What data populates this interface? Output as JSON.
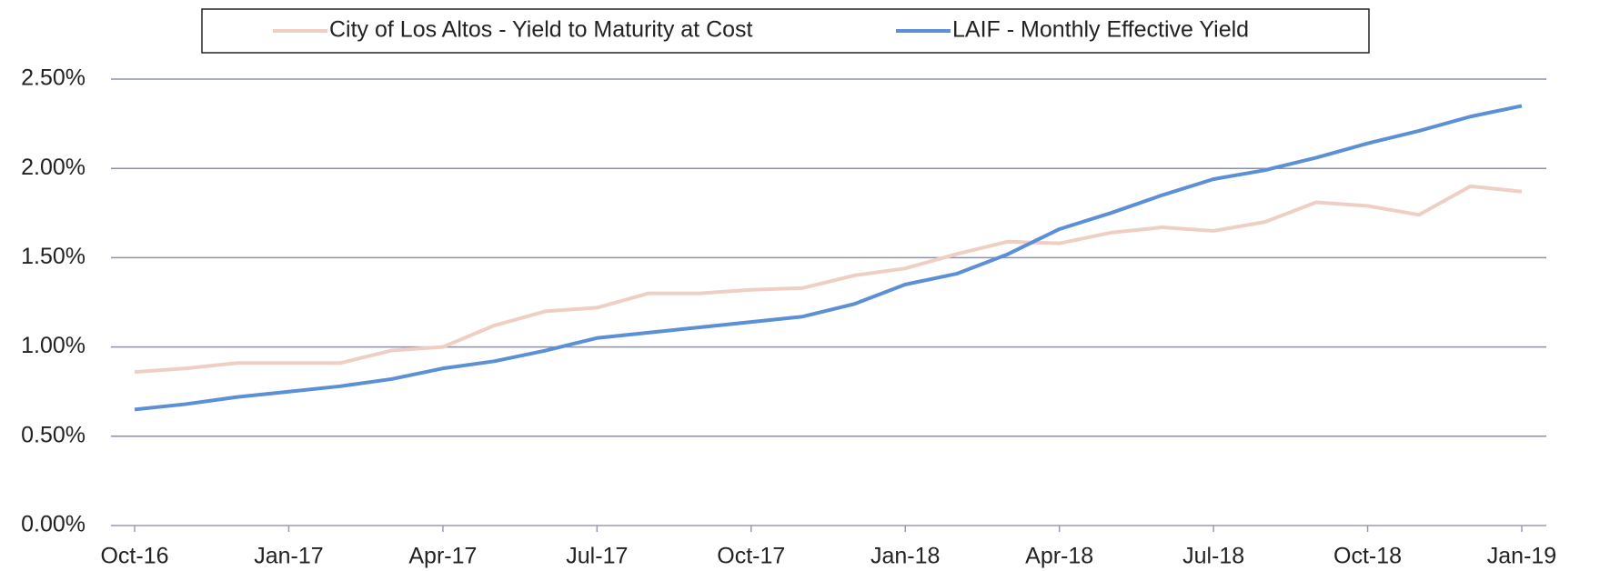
{
  "chart_data": {
    "type": "line",
    "categories": [
      "Oct-16",
      null,
      null,
      "Jan-17",
      null,
      null,
      "Apr-17",
      null,
      null,
      "Jul-17",
      null,
      null,
      "Oct-17",
      null,
      null,
      "Jan-18",
      null,
      null,
      "Apr-18",
      null,
      null,
      "Jul-18",
      null,
      null,
      "Oct-18",
      null,
      null,
      "Jan-19"
    ],
    "series": [
      {
        "name": "City of Los Altos - Yield to Maturity at Cost",
        "color": "#efcfc4",
        "values": [
          0.86,
          0.88,
          0.91,
          0.91,
          0.91,
          0.98,
          1.0,
          1.12,
          1.2,
          1.22,
          1.3,
          1.3,
          1.32,
          1.33,
          1.4,
          1.44,
          1.52,
          1.59,
          1.58,
          1.64,
          1.67,
          1.65,
          1.7,
          1.81,
          1.79,
          1.74,
          1.9,
          1.87
        ]
      },
      {
        "name": "LAIF - Monthly Effective Yield",
        "color": "#5b8fd6",
        "values": [
          0.65,
          0.68,
          0.72,
          0.75,
          0.78,
          0.82,
          0.88,
          0.92,
          0.98,
          1.05,
          1.08,
          1.11,
          1.14,
          1.17,
          1.24,
          1.35,
          1.41,
          1.52,
          1.66,
          1.75,
          1.85,
          1.94,
          1.99,
          2.06,
          2.14,
          2.21,
          2.29,
          2.35
        ]
      }
    ],
    "ylim": [
      0,
      2.5
    ],
    "yticks": [
      {
        "value": 0,
        "label": "0.00%"
      },
      {
        "value": 0.5,
        "label": "0.50%"
      },
      {
        "value": 1,
        "label": "1.00%"
      },
      {
        "value": 1.5,
        "label": "1.50%"
      },
      {
        "value": 2,
        "label": "2.00%"
      },
      {
        "value": 2.5,
        "label": "2.50%"
      }
    ],
    "grid": true,
    "legend": "top"
  }
}
